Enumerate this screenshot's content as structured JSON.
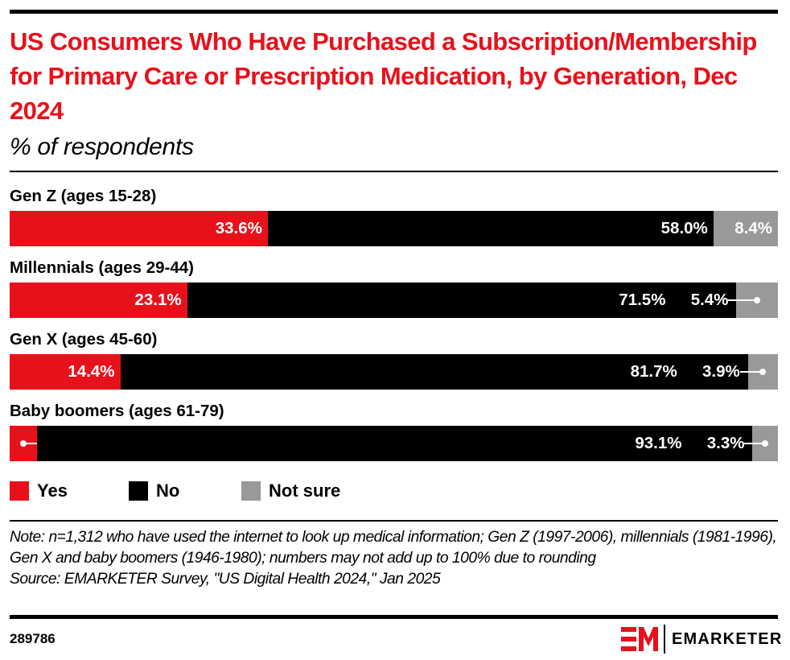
{
  "chart_data": {
    "type": "bar",
    "orientation": "horizontal",
    "stacked": true,
    "title": "US Consumers Who Have Purchased a Subscription/Membership for Primary Care or Prescription Medication, by Generation, Dec 2024",
    "subtitle": "% of respondents",
    "xlabel": "",
    "ylabel": "",
    "xlim": [
      0,
      100
    ],
    "grid": false,
    "legend_position": "bottom-left",
    "categories": [
      "Gen Z (ages 15-28)",
      "Millennials (ages 29-44)",
      "Gen X (ages 45-60)",
      "Baby boomers (ages 61-79)"
    ],
    "series": [
      {
        "name": "Yes",
        "color": "#e8111b",
        "values": [
          33.6,
          23.1,
          14.4,
          3.6
        ],
        "labels": [
          "33.6%",
          "23.1%",
          "14.4%",
          "3.6%"
        ]
      },
      {
        "name": "No",
        "color": "#000000",
        "values": [
          58.0,
          71.5,
          81.7,
          93.1
        ],
        "labels": [
          "58.0%",
          "71.5%",
          "81.7%",
          "93.1%"
        ]
      },
      {
        "name": "Not sure",
        "color": "#999999",
        "values": [
          8.4,
          5.4,
          3.9,
          3.3
        ],
        "labels": [
          "8.4%",
          "5.4%",
          "3.9%",
          "3.3%"
        ]
      }
    ]
  },
  "legend": [
    {
      "label": "Yes",
      "color": "#e8111b"
    },
    {
      "label": "No",
      "color": "#000000"
    },
    {
      "label": "Not sure",
      "color": "#999999"
    }
  ],
  "footer": {
    "note": "Note: n=1,312 who have used the internet to look up medical information; Gen Z (1997-2006), millennials (1981-1996), Gen X and baby boomers (1946-1980); numbers may not add up to 100% due to rounding",
    "source": "Source: EMARKETER Survey, \"US Digital Health 2024,\" Jan 2025",
    "chart_id": "289786",
    "brand": "EMARKETER",
    "brand_color": "#e8111b"
  }
}
